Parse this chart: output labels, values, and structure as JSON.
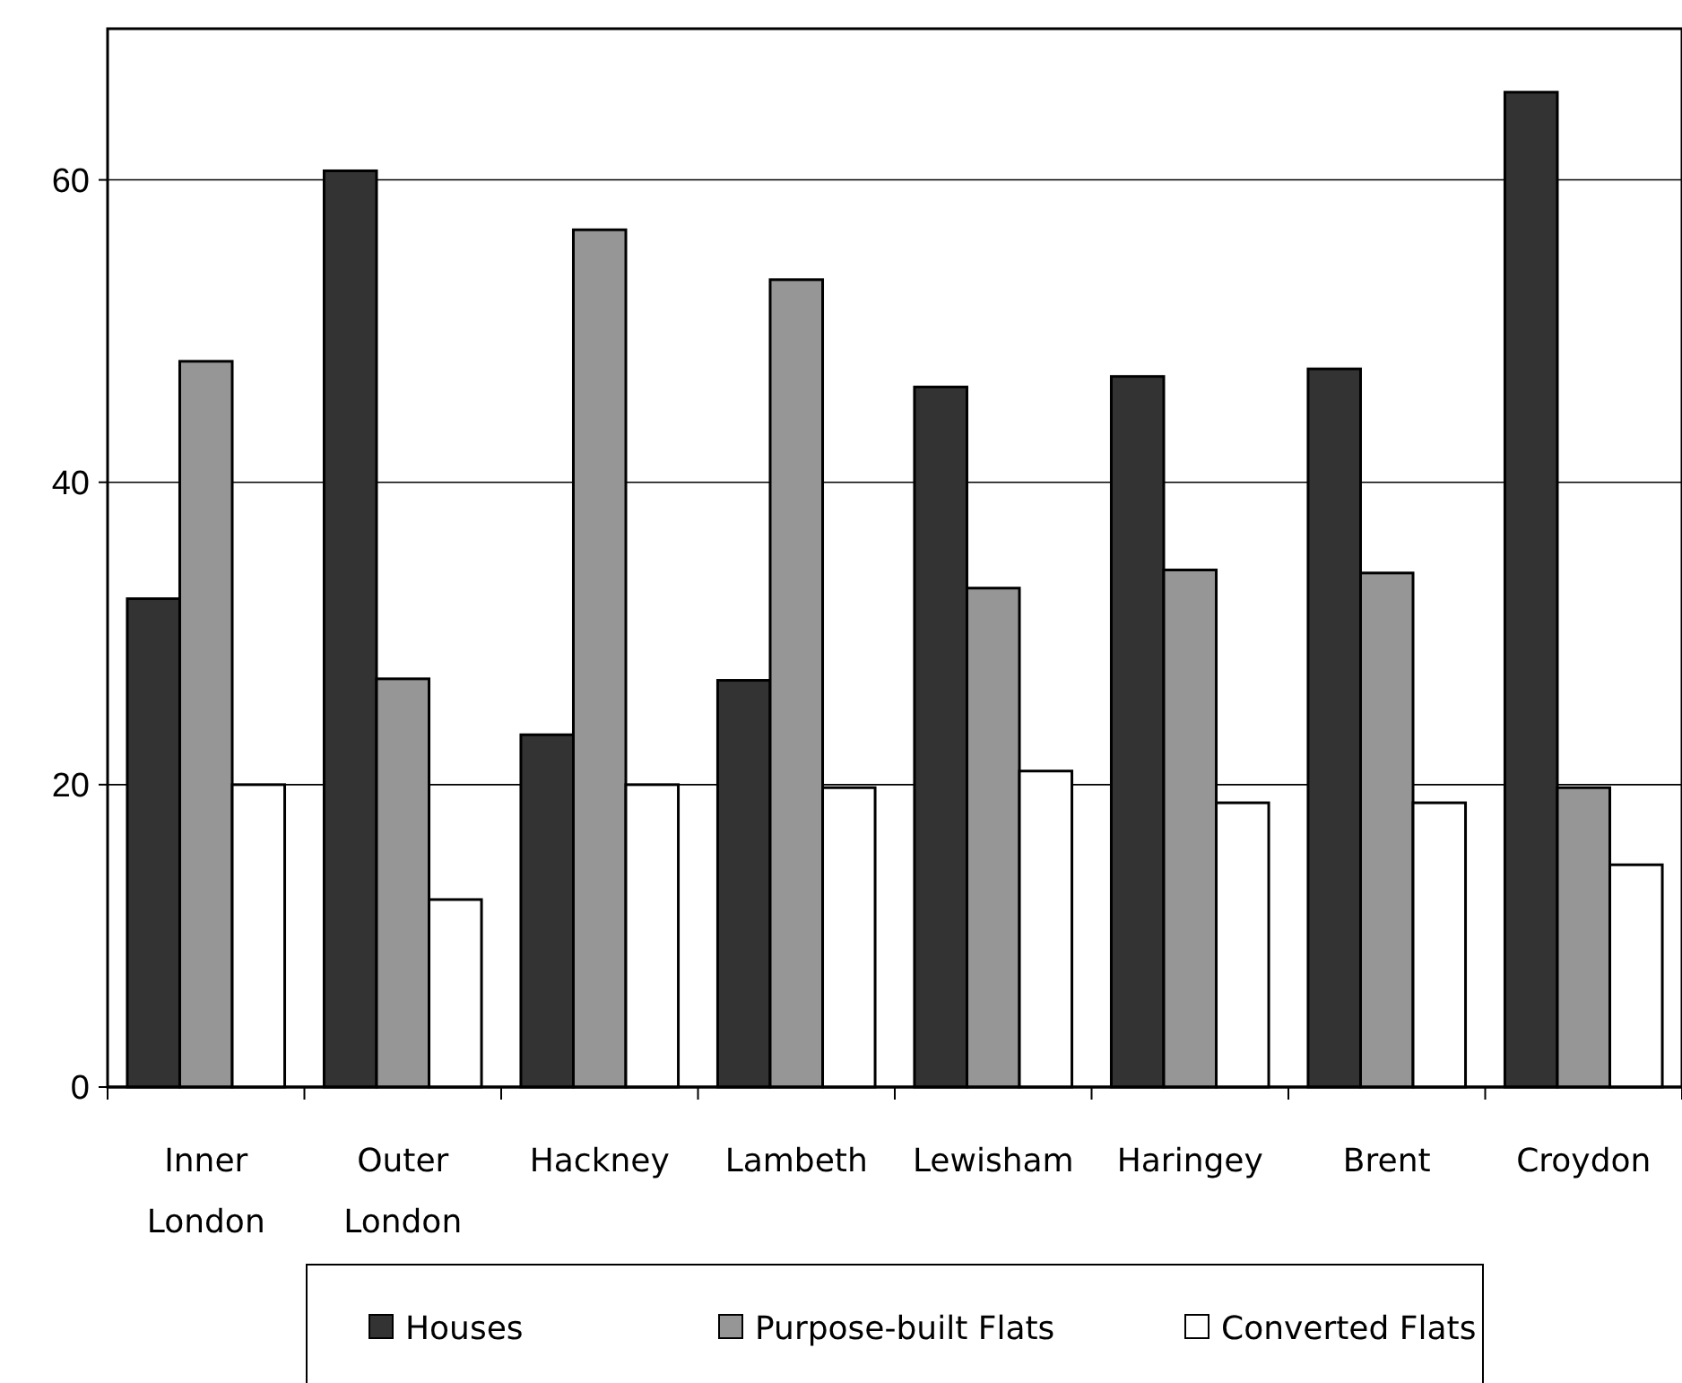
{
  "chart_data": {
    "type": "bar",
    "categories": [
      "Inner London",
      "Outer London",
      "Hackney",
      "Lambeth",
      "Lewisham",
      "Haringey",
      "Brent",
      "Croydon"
    ],
    "series": [
      {
        "name": "Houses",
        "color": "#333333",
        "values": [
          32.3,
          60.6,
          23.3,
          26.9,
          46.3,
          47.0,
          47.5,
          65.8
        ]
      },
      {
        "name": "Purpose-built Flats",
        "color": "#969696",
        "values": [
          48.0,
          27.0,
          56.7,
          53.4,
          33.0,
          34.2,
          34.0,
          19.8
        ]
      },
      {
        "name": "Converted Flats",
        "color": "#ffffff",
        "values": [
          20.0,
          12.4,
          20.0,
          19.8,
          20.9,
          18.8,
          18.8,
          14.7
        ]
      }
    ],
    "ylim": [
      0,
      70
    ],
    "yticks": [
      0,
      20,
      40,
      60
    ],
    "grid": "y",
    "legend": "bottom"
  }
}
